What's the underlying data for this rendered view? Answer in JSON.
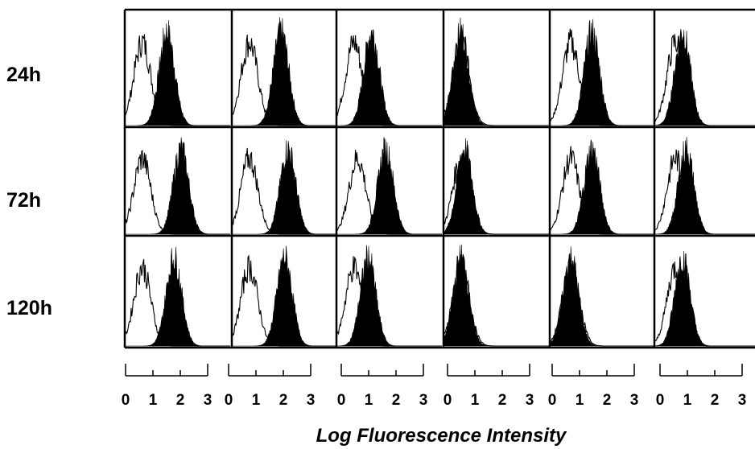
{
  "chart_data": {
    "type": "histogram-grid",
    "row_labels": [
      "24h",
      "72h",
      "120h"
    ],
    "x_axis": {
      "label": "Log Fluorescence Intensity",
      "scale": "log",
      "range": [
        0,
        3
      ],
      "tick_labels": [
        "0",
        "1",
        "2",
        "3"
      ]
    },
    "panels_per_row": 6,
    "series": [
      {
        "style": "unfilled outline"
      },
      {
        "style": "filled black"
      }
    ],
    "filled_peak_log_intensity": [
      [
        1.2,
        1.4,
        1.0,
        0.5,
        1.2,
        0.8
      ],
      [
        1.6,
        1.6,
        1.4,
        0.6,
        1.2,
        0.9
      ],
      [
        1.4,
        1.5,
        0.9,
        0.5,
        0.6,
        0.8
      ]
    ],
    "open_peak_log_intensity": [
      [
        0.5,
        0.5,
        0.5,
        0.5,
        0.6,
        0.6
      ],
      [
        0.5,
        0.5,
        0.6,
        0.5,
        0.6,
        0.6
      ],
      [
        0.5,
        0.5,
        0.5,
        0.5,
        0.6,
        0.6
      ]
    ]
  }
}
